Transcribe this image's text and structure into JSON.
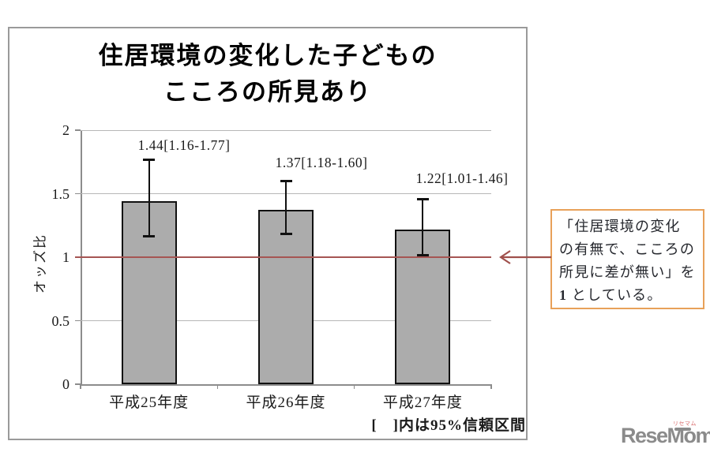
{
  "title": {
    "line1": "住居環境の変化した子どもの",
    "line2": "こころの所見あり"
  },
  "chart_data": {
    "type": "bar",
    "categories": [
      "平成25年度",
      "平成26年度",
      "平成27年度"
    ],
    "values": [
      1.44,
      1.37,
      1.22
    ],
    "error_low": [
      1.16,
      1.18,
      1.01
    ],
    "error_high": [
      1.77,
      1.6,
      1.46
    ],
    "value_labels": [
      "1.44[1.16-1.77]",
      "1.37[1.18-1.60]",
      "1.22[1.01-1.46]"
    ],
    "ylabel": "オッズ比",
    "xlabel": "",
    "ylim": [
      0,
      2
    ],
    "ytick_labels": [
      "2",
      "1.5",
      "1",
      "0.5",
      "0"
    ],
    "ytick_values": [
      2,
      1.5,
      1,
      0.5,
      0
    ],
    "grid_values": [
      2,
      1.5,
      0.5
    ],
    "grid": true,
    "legend": "none",
    "reference_line_value": 1,
    "bar_color": "#acacac",
    "bar_border_color": "#111111",
    "reference_line_color": "#a65553"
  },
  "footnote": "[　]内は95%信頼区間",
  "annotation": {
    "lines": [
      "「住居環境の変化",
      "の有無で、こころの",
      "所見に差が無い」を"
    ],
    "last_bold": "1",
    "last_rest": " としている。",
    "border_color": "#e8a159",
    "arrow_color": "#a0504c"
  },
  "logo": {
    "text": "ReseMom.",
    "kana": "リセマム"
  }
}
